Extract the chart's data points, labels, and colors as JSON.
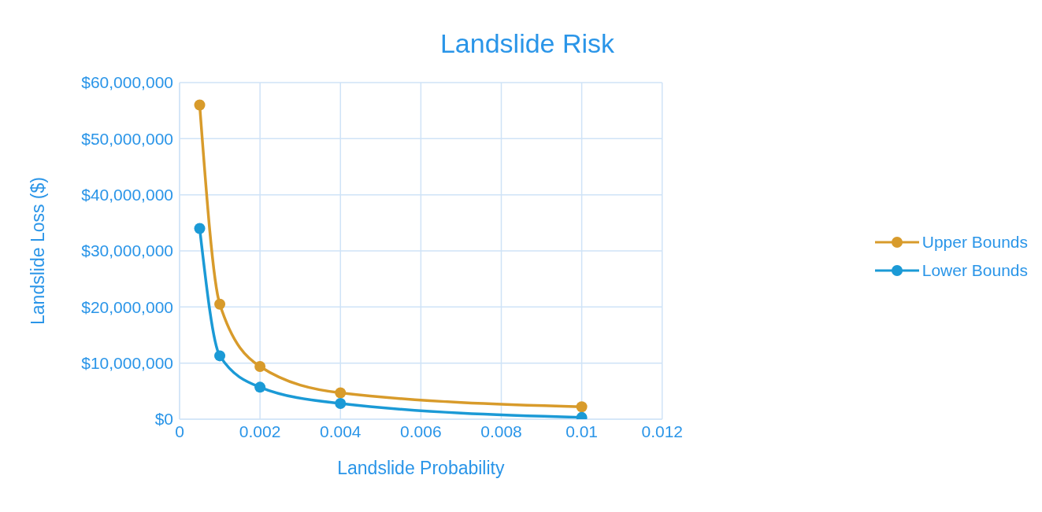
{
  "chart_data": {
    "type": "line",
    "title": "Landslide Risk",
    "xlabel": "Landslide Probability",
    "ylabel": "Landslide Loss ($)",
    "x": [
      0.0005,
      0.001,
      0.002,
      0.004,
      0.01
    ],
    "series": [
      {
        "name": "Upper Bounds",
        "color": "#d89b2b",
        "values": [
          56000000,
          20500000,
          9400000,
          4700000,
          2200000
        ]
      },
      {
        "name": "Lower Bounds",
        "color": "#1b9ad6",
        "values": [
          34000000,
          11300000,
          5700000,
          2800000,
          300000
        ]
      }
    ],
    "xlim": [
      0,
      0.012
    ],
    "xticks": [
      0,
      0.002,
      0.004,
      0.006,
      0.008,
      0.01,
      0.012
    ],
    "ylim": [
      0,
      60000000
    ],
    "yticks": [
      {
        "value": 0,
        "label": "$0"
      },
      {
        "value": 10000000,
        "label": "$10,000,000"
      },
      {
        "value": 20000000,
        "label": "$20,000,000"
      },
      {
        "value": 30000000,
        "label": "$30,000,000"
      },
      {
        "value": 40000000,
        "label": "$40,000,000"
      },
      {
        "value": 50000000,
        "label": "$50,000,000"
      },
      {
        "value": 60000000,
        "label": "$60,000,000"
      }
    ],
    "grid": true,
    "legend": "right",
    "marker": "circle",
    "line_style": "solid"
  }
}
